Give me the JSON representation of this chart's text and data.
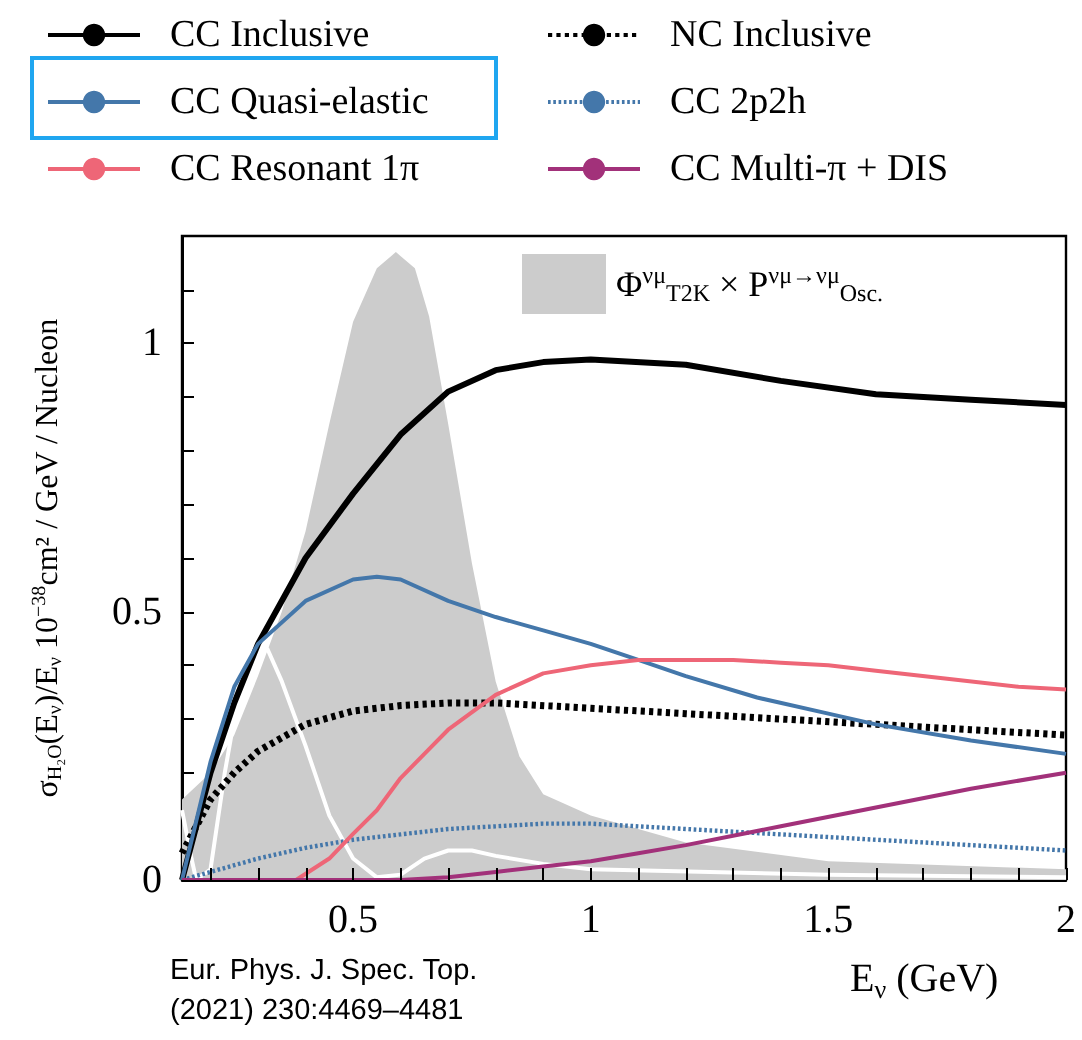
{
  "chart_data": {
    "type": "line",
    "xlabel": "E$_{ν}$ (GeV)",
    "ylabel": "σ$_{H₂O}$(E$_{ν}$)/E$_{ν}$ 10$^{−38}$cm² / GeV / Nucleon",
    "annotations": [
      "Eur. Phys. J. Spec. Top.",
      "(2021) 230:4469–4481"
    ],
    "xlim": [
      0.14,
      2
    ],
    "ylim": [
      0,
      1.2
    ],
    "xticks": [
      {
        "value": 0.2,
        "label": null
      },
      {
        "value": 0.3,
        "label": null
      },
      {
        "value": 0.4,
        "label": null
      },
      0.5,
      {
        "value": 0.6,
        "label": null
      },
      {
        "value": 0.7,
        "label": null
      },
      {
        "value": 0.8,
        "label": null
      },
      {
        "value": 0.9,
        "label": null
      },
      1,
      {
        "value": 1.1,
        "label": null
      },
      {
        "value": 1.2,
        "label": null
      },
      {
        "value": 1.3,
        "label": null
      },
      {
        "value": 1.4,
        "label": null
      },
      1.5,
      {
        "value": 1.6,
        "label": null
      },
      {
        "value": 1.7,
        "label": null
      },
      {
        "value": 1.8,
        "label": null
      },
      {
        "value": 1.9,
        "label": null
      },
      2
    ],
    "yticks": [
      0,
      {
        "value": 0.1,
        "label": null
      },
      {
        "value": 0.2,
        "label": null
      },
      {
        "value": 0.3,
        "label": null
      },
      {
        "value": 0.4,
        "label": null
      },
      0.5,
      {
        "value": 0.6,
        "label": null
      },
      {
        "value": 0.7,
        "label": null
      },
      {
        "value": 0.8,
        "label": null
      },
      {
        "value": 0.9,
        "label": null
      },
      1,
      {
        "value": 1.1,
        "label": null
      }
    ],
    "legend": "top",
    "marker": "none",
    "series": [
      {
        "type": "area",
        "name": "Φ$^{νμ}$$_{T2K}$ × P$^{νμ→νμ}$$_{Osc.}$",
        "color": "#cccccc",
        "x": [
          0.14,
          0.2,
          0.25,
          0.3,
          0.35,
          0.4,
          0.45,
          0.5,
          0.55,
          0.59,
          0.63,
          0.66,
          0.7,
          0.75,
          0.8,
          0.85,
          0.9,
          1.0,
          1.2,
          1.5,
          2.0
        ],
        "values": [
          0.15,
          0.2,
          0.27,
          0.38,
          0.5,
          0.65,
          0.85,
          1.04,
          1.14,
          1.17,
          1.14,
          1.05,
          0.85,
          0.59,
          0.37,
          0.23,
          0.16,
          0.12,
          0.07,
          0.035,
          0.02
        ]
      },
      {
        "color": "#ffffff",
        "line_style": "solid",
        "x": [
          0.14,
          0.16,
          0.17,
          0.2,
          0.23,
          0.26,
          0.3,
          0.32,
          0.35,
          0.4,
          0.45,
          0.5,
          0.55,
          0.6,
          0.65,
          0.7,
          0.75,
          0.8,
          0.9,
          1.0,
          1.5,
          2.0
        ],
        "values": [
          0.13,
          0.04,
          0,
          0.02,
          0.2,
          0.35,
          0.42,
          0.43,
          0.37,
          0.25,
          0.12,
          0.04,
          0.005,
          0.01,
          0.04,
          0.055,
          0.055,
          0.045,
          0.03,
          0.02,
          0.01,
          0.005
        ]
      },
      {
        "name": "CC Inclusive",
        "color": "#000000",
        "line_style": "solid",
        "x": [
          0.14,
          0.2,
          0.25,
          0.3,
          0.4,
          0.5,
          0.6,
          0.7,
          0.8,
          0.9,
          1.0,
          1.2,
          1.4,
          1.6,
          1.8,
          2.0
        ],
        "values": [
          0,
          0.2,
          0.33,
          0.44,
          0.6,
          0.72,
          0.83,
          0.91,
          0.95,
          0.965,
          0.97,
          0.96,
          0.93,
          0.905,
          0.895,
          0.885
        ]
      },
      {
        "name": "NC Inclusive",
        "color": "#000000",
        "line_style": "dotted",
        "x": [
          0.14,
          0.2,
          0.25,
          0.3,
          0.4,
          0.5,
          0.6,
          0.7,
          0.8,
          1.0,
          1.2,
          1.4,
          1.6,
          1.8,
          2.0
        ],
        "values": [
          0.05,
          0.15,
          0.2,
          0.24,
          0.29,
          0.315,
          0.325,
          0.33,
          0.33,
          0.32,
          0.31,
          0.3,
          0.29,
          0.28,
          0.27
        ]
      },
      {
        "name": "CC Quasi-elastic",
        "color": "#4477aa",
        "line_style": "solid",
        "x": [
          0.14,
          0.2,
          0.25,
          0.3,
          0.4,
          0.5,
          0.55,
          0.6,
          0.7,
          0.8,
          0.9,
          1.0,
          1.1,
          1.2,
          1.35,
          1.5,
          1.6,
          1.8,
          2.0
        ],
        "values": [
          0,
          0.22,
          0.36,
          0.44,
          0.52,
          0.56,
          0.565,
          0.56,
          0.52,
          0.49,
          0.465,
          0.44,
          0.41,
          0.38,
          0.34,
          0.31,
          0.29,
          0.26,
          0.235
        ]
      },
      {
        "name": "CC 2p2h",
        "color": "#4477aa",
        "line_style": "dotted",
        "x": [
          0.14,
          0.2,
          0.3,
          0.4,
          0.5,
          0.6,
          0.7,
          0.8,
          0.9,
          1.0,
          1.2,
          1.4,
          1.6,
          1.8,
          2.0
        ],
        "values": [
          0,
          0.015,
          0.04,
          0.06,
          0.075,
          0.085,
          0.095,
          0.1,
          0.105,
          0.105,
          0.095,
          0.085,
          0.075,
          0.065,
          0.055
        ]
      },
      {
        "name": "CC Resonant 1π",
        "color": "#ee6677",
        "line_style": "solid",
        "x": [
          0.14,
          0.38,
          0.45,
          0.5,
          0.55,
          0.6,
          0.65,
          0.7,
          0.8,
          0.9,
          1.0,
          1.1,
          1.2,
          1.3,
          1.4,
          1.5,
          1.6,
          1.75,
          1.9,
          2.0
        ],
        "values": [
          0,
          0,
          0.04,
          0.086,
          0.13,
          0.19,
          0.235,
          0.28,
          0.345,
          0.385,
          0.4,
          0.41,
          0.41,
          0.41,
          0.405,
          0.4,
          0.39,
          0.375,
          0.36,
          0.355
        ]
      },
      {
        "name": "CC Multi-π + DIS",
        "color": "#a2317a",
        "line_style": "solid",
        "x": [
          0.14,
          0.4,
          0.6,
          0.7,
          0.8,
          0.9,
          1.0,
          1.1,
          1.2,
          1.4,
          1.6,
          1.8,
          2.0
        ],
        "values": [
          0,
          0,
          0,
          0.005,
          0.015,
          0.025,
          0.035,
          0.05,
          0.065,
          0.1,
          0.135,
          0.17,
          0.2
        ]
      }
    ]
  }
}
